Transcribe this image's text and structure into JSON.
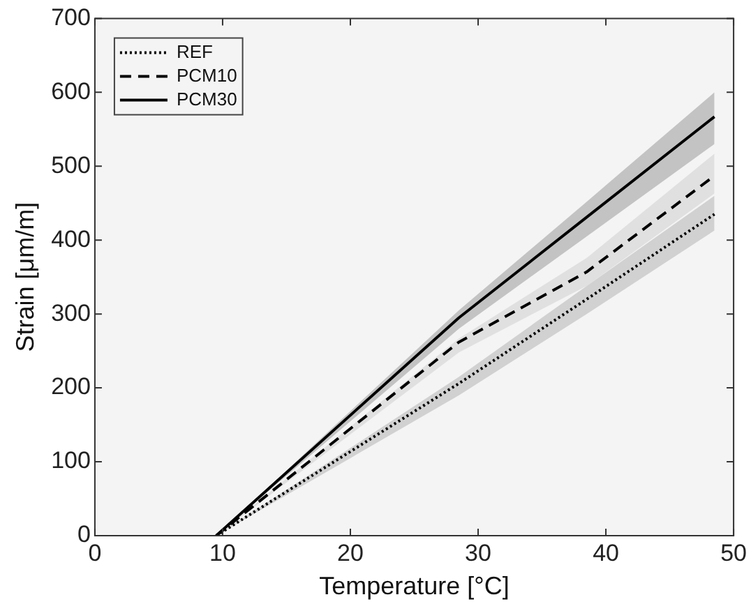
{
  "chart_data": {
    "type": "line",
    "xlabel": "Temperature [°C]",
    "ylabel": "Strain [μm/m]",
    "x": [
      9.5,
      28.5,
      38.5,
      48.5
    ],
    "series": [
      {
        "name": "REF",
        "color": "#000000",
        "line_style": "dotted",
        "values": [
          0,
          206,
          320,
          435
        ],
        "lower": [
          0,
          190,
          300,
          413
        ],
        "upper": [
          0,
          215,
          338,
          460
        ]
      },
      {
        "name": "PCM10",
        "color": "#000000",
        "line_style": "dashed",
        "values": [
          0,
          262,
          357,
          487
        ],
        "lower": [
          0,
          248,
          338,
          463
        ],
        "upper": [
          0,
          267,
          376,
          517
        ]
      },
      {
        "name": "PCM30",
        "color": "#000000",
        "line_style": "solid",
        "values": [
          0,
          295,
          431,
          567
        ],
        "lower": [
          0,
          280,
          405,
          530
        ],
        "upper": [
          0,
          305,
          452,
          600
        ]
      }
    ],
    "xlim": [
      0,
      50
    ],
    "xticks": [
      0,
      10,
      20,
      30,
      40,
      50
    ],
    "ylim": [
      0,
      700
    ],
    "yticks": [
      0,
      100,
      200,
      300,
      400,
      500,
      600,
      700
    ],
    "grid": false,
    "legend": "top left",
    "marker": "none"
  }
}
